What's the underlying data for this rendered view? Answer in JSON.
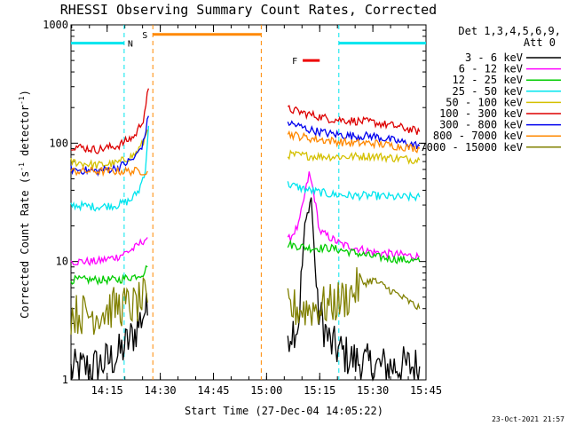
{
  "chart_data": {
    "type": "line",
    "title": "RHESSI Observing Summary Count Rates, Corrected",
    "xlabel": "Start Time (27-Dec-04 14:05:22)",
    "ylabel_main": "Corrected Count Rate (s",
    "ylabel_sup1": "-1",
    "ylabel_mid": " detector",
    "ylabel_sup2": "-1",
    "ylabel_end": ")",
    "y_scale": "log",
    "ylim": [
      1,
      1000
    ],
    "y_ticks": [
      "1",
      "10",
      "100",
      "1000"
    ],
    "x_range_minutes": [
      14.08,
      15.75
    ],
    "x_ticks": [
      "14:15",
      "14:30",
      "14:45",
      "15:00",
      "15:15",
      "15:30",
      "15:45"
    ],
    "legend_header_1": "Det 1,3,4,5,6,9,",
    "legend_header_2": "Att 0",
    "timestamp": "23-Oct-2021 21:57",
    "series": [
      {
        "name": "3 - 6 keV",
        "color": "#000000",
        "segments": [
          {
            "t": [
              14.08,
              14.2,
              14.3,
              14.38,
              14.43,
              14.44
            ],
            "v": [
              1.2,
              1.3,
              1.6,
              2.5,
              4.0,
              3.5
            ]
          },
          {
            "t": [
              15.1,
              15.15,
              15.18,
              15.21,
              15.24,
              15.3,
              15.4,
              15.5,
              15.72
            ],
            "v": [
              2.5,
              3.0,
              20,
              35,
              4.0,
              2.0,
              1.5,
              1.3,
              1.3
            ]
          }
        ]
      },
      {
        "name": "6 - 12 keV",
        "color": "#ff00ff",
        "segments": [
          {
            "t": [
              14.08,
              14.2,
              14.3,
              14.38,
              14.42,
              14.44
            ],
            "v": [
              10,
              10,
              11,
              13,
              15,
              16
            ]
          },
          {
            "t": [
              15.1,
              15.15,
              15.2,
              15.22,
              15.25,
              15.35,
              15.5,
              15.72
            ],
            "v": [
              15,
              20,
              55,
              40,
              18,
              14,
              12,
              11
            ]
          }
        ]
      },
      {
        "name": "12 - 25 keV",
        "color": "#00cc00",
        "segments": [
          {
            "t": [
              14.08,
              14.2,
              14.3,
              14.38,
              14.42,
              14.44
            ],
            "v": [
              7,
              7,
              7,
              7.5,
              8,
              9
            ]
          },
          {
            "t": [
              15.1,
              15.2,
              15.3,
              15.4,
              15.5,
              15.72
            ],
            "v": [
              14,
              13,
              13,
              12,
              11,
              10
            ]
          }
        ]
      },
      {
        "name": "25 - 50 keV",
        "color": "#00e5ee",
        "segments": [
          {
            "t": [
              14.08,
              14.2,
              14.3,
              14.36,
              14.4,
              14.43,
              14.445
            ],
            "v": [
              30,
              29,
              30,
              33,
              40,
              60,
              140
            ]
          },
          {
            "t": [
              15.1,
              15.2,
              15.3,
              15.4,
              15.5,
              15.6,
              15.72
            ],
            "v": [
              45,
              40,
              37,
              36,
              36,
              35,
              35
            ]
          }
        ]
      },
      {
        "name": "50 - 100 keV",
        "color": "#d4c000",
        "segments": [
          {
            "t": [
              14.08,
              14.2,
              14.3,
              14.38,
              14.42,
              14.44
            ],
            "v": [
              70,
              65,
              68,
              80,
              100,
              130
            ]
          },
          {
            "t": [
              15.1,
              15.2,
              15.3,
              15.4,
              15.5,
              15.6,
              15.72
            ],
            "v": [
              80,
              78,
              77,
              77,
              78,
              75,
              72
            ]
          }
        ]
      },
      {
        "name": "100 - 300 keV",
        "color": "#dd0000",
        "segments": [
          {
            "t": [
              14.08,
              14.2,
              14.3,
              14.38,
              14.42,
              14.445
            ],
            "v": [
              95,
              88,
              95,
              115,
              160,
              290
            ]
          },
          {
            "t": [
              15.1,
              15.2,
              15.3,
              15.4,
              15.5,
              15.6,
              15.72
            ],
            "v": [
              195,
              175,
              160,
              155,
              150,
              140,
              125
            ]
          }
        ]
      },
      {
        "name": "300 - 800 keV",
        "color": "#0000ee",
        "segments": [
          {
            "t": [
              14.08,
              14.2,
              14.3,
              14.38,
              14.42,
              14.445
            ],
            "v": [
              60,
              58,
              62,
              75,
              100,
              170
            ]
          },
          {
            "t": [
              15.1,
              15.2,
              15.3,
              15.4,
              15.5,
              15.6,
              15.72
            ],
            "v": [
              150,
              130,
              120,
              115,
              115,
              105,
              95
            ]
          }
        ]
      },
      {
        "name": "800 - 7000 keV",
        "color": "#ff8800",
        "segments": [
          {
            "t": [
              14.08,
              14.2,
              14.3,
              14.38,
              14.42,
              14.44
            ],
            "v": [
              58,
              58,
              58,
              58,
              58,
              58
            ]
          },
          {
            "t": [
              15.1,
              15.2,
              15.3,
              15.4,
              15.5,
              15.6,
              15.72
            ],
            "v": [
              120,
              110,
              105,
              100,
              100,
              95,
              90
            ]
          }
        ]
      },
      {
        "name": "7000 - 15000 keV",
        "color": "#808000",
        "segments": [
          {
            "t": [
              14.08,
              14.2,
              14.3,
              14.38,
              14.42,
              14.44
            ],
            "v": [
              3.6,
              3.6,
              4.2,
              4.2,
              4.8,
              4.5
            ]
          },
          {
            "t": [
              15.1,
              15.2,
              15.3,
              15.38,
              15.45,
              15.5,
              15.6,
              15.72
            ],
            "v": [
              4.0,
              4.0,
              4.3,
              5.0,
              6.5,
              7.0,
              5.5,
              4.0
            ]
          }
        ]
      }
    ],
    "night_intervals": [
      {
        "label": "N",
        "start": 14.08,
        "end": 14.33,
        "color": "#00e5ee",
        "level": 700
      },
      {
        "label": "",
        "start": 15.34,
        "end": 15.75,
        "color": "#00e5ee",
        "level": 700
      }
    ],
    "saa_intervals": [
      {
        "label": "S",
        "start": 14.465,
        "end": 14.975,
        "color": "#ff8800",
        "level": 830
      }
    ],
    "flare_marks": [
      {
        "label": "F",
        "start": 15.17,
        "end": 15.25,
        "color": "#ee0000",
        "level": 500
      }
    ]
  }
}
